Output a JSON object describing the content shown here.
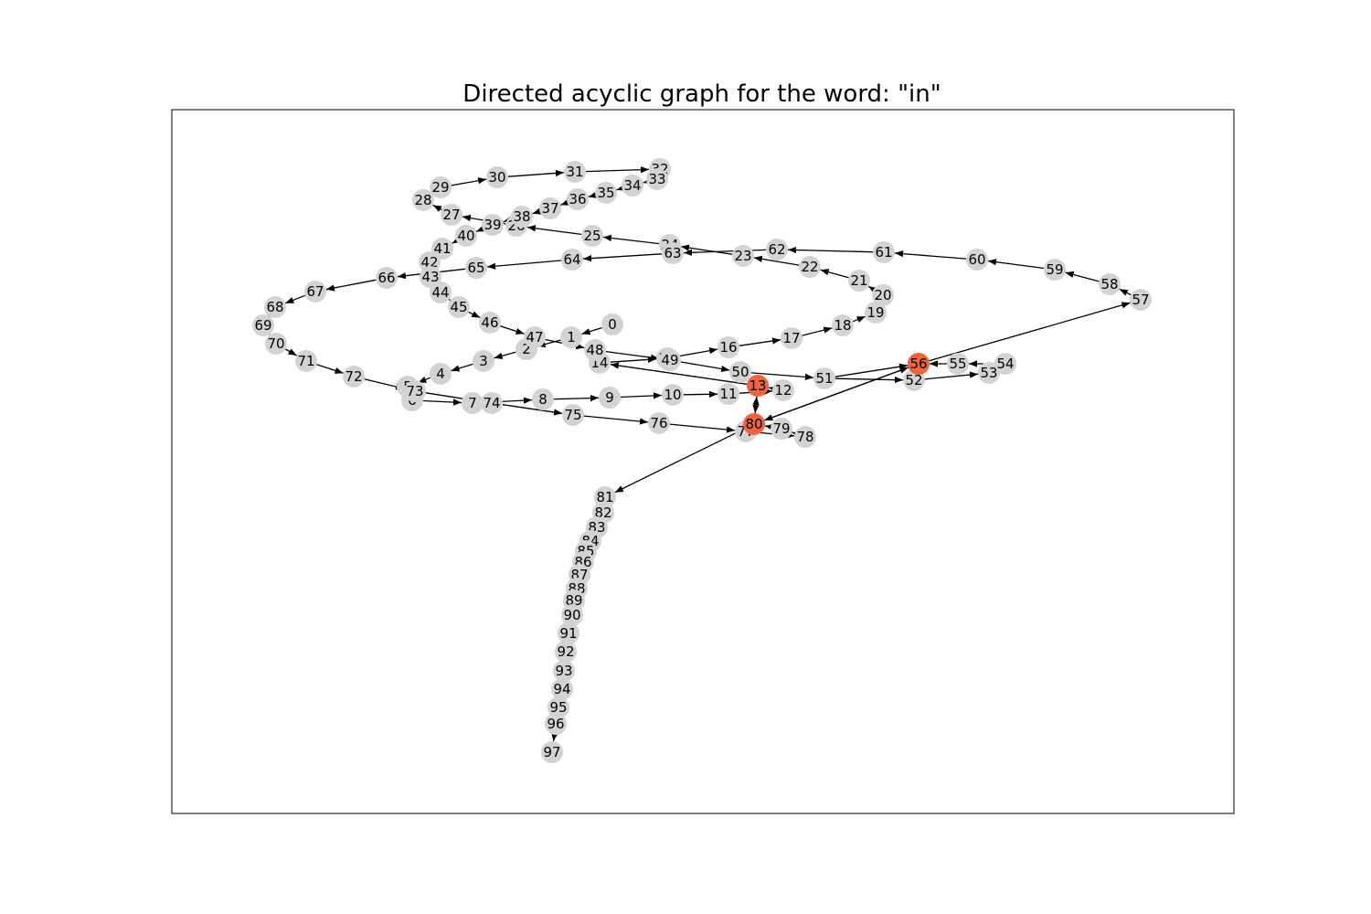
{
  "title": "Directed acyclic graph for the word: \"in\"",
  "colors": {
    "node": "#d3d3d3",
    "highlight": "#f0643c",
    "edge": "#000000",
    "frame": "#000000"
  },
  "highlighted_nodes": [
    "13",
    "56",
    "80"
  ],
  "nodes": [
    "0",
    "1",
    "2",
    "3",
    "4",
    "5",
    "6",
    "7",
    "8",
    "9",
    "10",
    "11",
    "12",
    "13",
    "14",
    "15",
    "16",
    "17",
    "18",
    "19",
    "20",
    "21",
    "22",
    "23",
    "24",
    "25",
    "26",
    "27",
    "28",
    "29",
    "30",
    "31",
    "32",
    "33",
    "34",
    "35",
    "36",
    "37",
    "38",
    "39",
    "40",
    "41",
    "42",
    "43",
    "44",
    "45",
    "46",
    "47",
    "48",
    "49",
    "50",
    "51",
    "52",
    "53",
    "54",
    "55",
    "56",
    "57",
    "58",
    "59",
    "60",
    "61",
    "62",
    "63",
    "64",
    "65",
    "66",
    "67",
    "68",
    "69",
    "70",
    "71",
    "72",
    "73",
    "74",
    "75",
    "76",
    "77",
    "78",
    "79",
    "80",
    "81",
    "82",
    "83",
    "84",
    "85",
    "86",
    "87",
    "88",
    "89",
    "90",
    "91",
    "92",
    "93",
    "94",
    "95",
    "96",
    "97"
  ],
  "edges": [
    [
      "0",
      "1"
    ],
    [
      "1",
      "2"
    ],
    [
      "2",
      "3"
    ],
    [
      "3",
      "4"
    ],
    [
      "4",
      "5"
    ],
    [
      "5",
      "6"
    ],
    [
      "6",
      "7"
    ],
    [
      "7",
      "8"
    ],
    [
      "8",
      "9"
    ],
    [
      "9",
      "10"
    ],
    [
      "10",
      "11"
    ],
    [
      "11",
      "12"
    ],
    [
      "12",
      "13"
    ],
    [
      "13",
      "14"
    ],
    [
      "14",
      "15"
    ],
    [
      "15",
      "16"
    ],
    [
      "16",
      "17"
    ],
    [
      "17",
      "18"
    ],
    [
      "18",
      "19"
    ],
    [
      "19",
      "20"
    ],
    [
      "20",
      "21"
    ],
    [
      "21",
      "22"
    ],
    [
      "22",
      "23"
    ],
    [
      "23",
      "24"
    ],
    [
      "24",
      "25"
    ],
    [
      "25",
      "26"
    ],
    [
      "26",
      "27"
    ],
    [
      "27",
      "28"
    ],
    [
      "28",
      "29"
    ],
    [
      "29",
      "30"
    ],
    [
      "30",
      "31"
    ],
    [
      "31",
      "32"
    ],
    [
      "32",
      "33"
    ],
    [
      "33",
      "34"
    ],
    [
      "34",
      "35"
    ],
    [
      "35",
      "36"
    ],
    [
      "36",
      "37"
    ],
    [
      "37",
      "38"
    ],
    [
      "38",
      "39"
    ],
    [
      "39",
      "40"
    ],
    [
      "40",
      "41"
    ],
    [
      "41",
      "42"
    ],
    [
      "42",
      "43"
    ],
    [
      "43",
      "44"
    ],
    [
      "44",
      "45"
    ],
    [
      "45",
      "46"
    ],
    [
      "46",
      "47"
    ],
    [
      "47",
      "48"
    ],
    [
      "48",
      "49"
    ],
    [
      "49",
      "50"
    ],
    [
      "50",
      "51"
    ],
    [
      "51",
      "52"
    ],
    [
      "52",
      "53"
    ],
    [
      "53",
      "54"
    ],
    [
      "54",
      "55"
    ],
    [
      "55",
      "56"
    ],
    [
      "56",
      "57"
    ],
    [
      "57",
      "58"
    ],
    [
      "58",
      "59"
    ],
    [
      "59",
      "60"
    ],
    [
      "60",
      "61"
    ],
    [
      "61",
      "62"
    ],
    [
      "62",
      "63"
    ],
    [
      "63",
      "64"
    ],
    [
      "64",
      "65"
    ],
    [
      "65",
      "66"
    ],
    [
      "66",
      "67"
    ],
    [
      "67",
      "68"
    ],
    [
      "68",
      "69"
    ],
    [
      "69",
      "70"
    ],
    [
      "70",
      "71"
    ],
    [
      "71",
      "72"
    ],
    [
      "72",
      "73"
    ],
    [
      "73",
      "74"
    ],
    [
      "74",
      "75"
    ],
    [
      "75",
      "76"
    ],
    [
      "76",
      "77"
    ],
    [
      "77",
      "78"
    ],
    [
      "78",
      "79"
    ],
    [
      "79",
      "80"
    ],
    [
      "80",
      "81"
    ],
    [
      "81",
      "82"
    ],
    [
      "82",
      "83"
    ],
    [
      "83",
      "84"
    ],
    [
      "84",
      "85"
    ],
    [
      "85",
      "86"
    ],
    [
      "86",
      "87"
    ],
    [
      "87",
      "88"
    ],
    [
      "88",
      "89"
    ],
    [
      "89",
      "90"
    ],
    [
      "90",
      "91"
    ],
    [
      "91",
      "92"
    ],
    [
      "92",
      "93"
    ],
    [
      "93",
      "94"
    ],
    [
      "94",
      "95"
    ],
    [
      "95",
      "96"
    ],
    [
      "96",
      "97"
    ],
    [
      "13",
      "80"
    ],
    [
      "80",
      "56"
    ],
    [
      "51",
      "56"
    ],
    [
      "56",
      "80"
    ],
    [
      "80",
      "13"
    ]
  ]
}
